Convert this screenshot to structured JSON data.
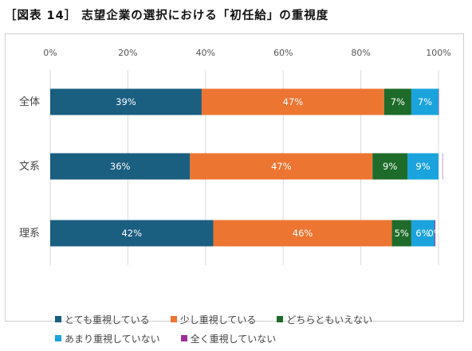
{
  "title": "［図表 14］ 志望企業の選択における「初任給」の重視度",
  "chart_data": {
    "type": "bar",
    "orientation": "horizontal",
    "stacked": true,
    "categories": [
      "全体",
      "文系",
      "理系"
    ],
    "x_ticks": [
      "0%",
      "20%",
      "40%",
      "60%",
      "80%",
      "100%"
    ],
    "xlim": [
      0,
      100
    ],
    "grid": true,
    "legend_position": "bottom",
    "series": [
      {
        "name": "とても重視している",
        "color": "#1a5e80",
        "values": [
          39,
          36,
          42
        ],
        "labels": [
          "39%",
          "36%",
          "42%"
        ]
      },
      {
        "name": "少し重視している",
        "color": "#ec7532",
        "values": [
          47,
          47,
          46
        ],
        "labels": [
          "47%",
          "47%",
          "46%"
        ]
      },
      {
        "name": "どちらともいえない",
        "color": "#1e6b2a",
        "values": [
          7,
          9,
          5
        ],
        "labels": [
          "7%",
          "9%",
          "5%"
        ]
      },
      {
        "name": "あまり重視していない",
        "color": "#1aa3dc",
        "values": [
          7,
          9,
          6
        ],
        "labels": [
          "7%",
          "9%",
          "6%"
        ]
      },
      {
        "name": "全く重視していない",
        "color": "#9c2f9c",
        "values": [
          0.5,
          0.8,
          0.2
        ],
        "labels": [
          "",
          "",
          "0%"
        ]
      }
    ]
  }
}
